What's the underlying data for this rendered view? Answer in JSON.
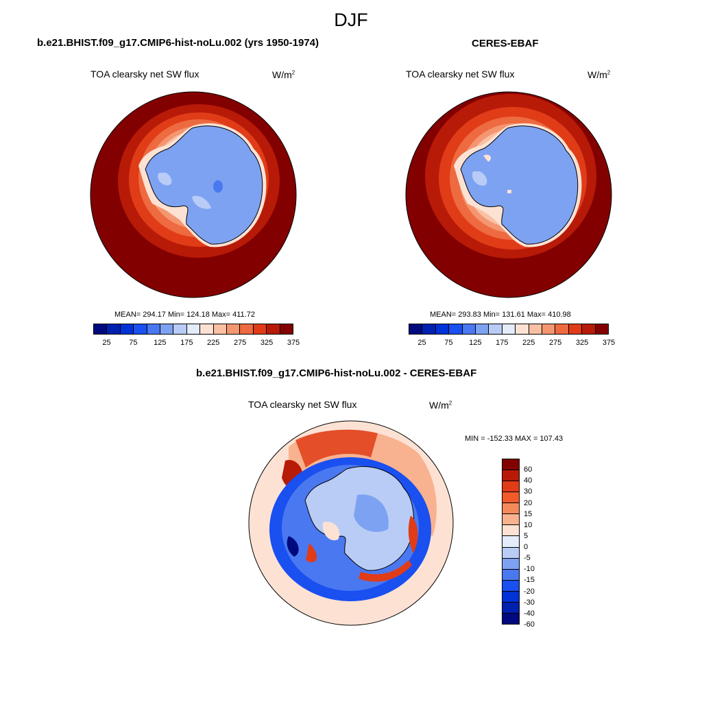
{
  "season": "DJF",
  "panels": [
    {
      "title": "b.e21.BHIST.f09_g17.CMIP6-hist-noLu.002 (yrs 1950-1974)",
      "variable": "TOA clearsky net SW flux",
      "units_base": "W/m",
      "units_sup": "2",
      "stats": "MEAN= 294.17  Min= 124.18  Max= 411.72",
      "mean": 294.17,
      "min": 124.18,
      "max": 411.72
    },
    {
      "title": "CERES-EBAF",
      "variable": "TOA clearsky net SW flux",
      "units_base": "W/m",
      "units_sup": "2",
      "stats": "MEAN= 293.83  Min= 131.61  Max= 410.98",
      "mean": 293.83,
      "min": 131.61,
      "max": 410.98
    }
  ],
  "abs_colorbar": {
    "colors": [
      "#000a7e",
      "#0020b0",
      "#0032d8",
      "#1a4ff0",
      "#4a78f0",
      "#7ea2f2",
      "#b8ccf6",
      "#e2ecfb",
      "#fde2d4",
      "#f9c0a4",
      "#f49670",
      "#ee6a40",
      "#e03c18",
      "#b81a08",
      "#820000"
    ],
    "tick_labels": [
      "25",
      "75",
      "125",
      "175",
      "225",
      "275",
      "325",
      "375"
    ]
  },
  "diff": {
    "title": "b.e21.BHIST.f09_g17.CMIP6-hist-noLu.002 - CERES-EBAF",
    "variable": "TOA clearsky net SW flux",
    "units_base": "W/m",
    "units_sup": "2",
    "stats": "MIN = -152.33 MAX = 107.43",
    "min": -152.33,
    "max": 107.43
  },
  "diff_colorbar": {
    "colors_top_to_bottom": [
      "#820000",
      "#b81a08",
      "#e03c18",
      "#f25a2c",
      "#f4895c",
      "#f8b290",
      "#fde2d4",
      "#e2ecfb",
      "#b8ccf6",
      "#7ea2f2",
      "#4a78f0",
      "#1a4ff0",
      "#0032d8",
      "#0020b0",
      "#000a7e"
    ],
    "tick_labels": [
      "60",
      "40",
      "30",
      "20",
      "15",
      "10",
      "5",
      "0",
      "-5",
      "-10",
      "-15",
      "-20",
      "-30",
      "-40",
      "-60"
    ]
  }
}
